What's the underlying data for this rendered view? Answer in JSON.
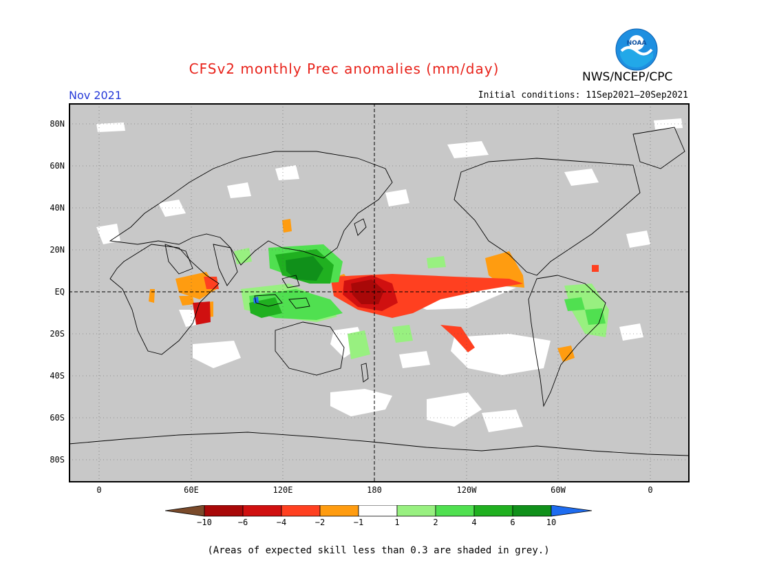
{
  "title": "CFSv2 monthly Prec anomalies (mm/day)",
  "agency": "NWS/NCEP/CPC",
  "logo": {
    "text": "NOAA",
    "colors": {
      "outer": "#1e8fe0",
      "inner": "#ffffff",
      "wave": "#22a8e8"
    }
  },
  "month_label": "Nov 2021",
  "initial_conditions": "Initial conditions: 11Sep2021—20Sep2021",
  "map": {
    "background_color": "#c8c8c8",
    "lat_labels": [
      "80N",
      "60N",
      "40N",
      "20N",
      "EQ",
      "20S",
      "40S",
      "60S",
      "80S"
    ],
    "lon_labels": [
      "0",
      "60E",
      "120E",
      "180",
      "120W",
      "60W",
      "0"
    ],
    "reference_lines": [
      "EQ",
      "180"
    ]
  },
  "colorbar": {
    "labels": [
      "−10",
      "−6",
      "−4",
      "−2",
      "−1",
      "1",
      "2",
      "4",
      "6",
      "10"
    ],
    "colors": [
      "#7a4a2a",
      "#a80808",
      "#d01010",
      "#ff4020",
      "#ff9c10",
      "#ffffff",
      "#98f080",
      "#50e050",
      "#20b020",
      "#10901a",
      "#1e6cf0"
    ]
  },
  "footnote": "(Areas of expected skill less than 0.3 are shaded in grey.)"
}
